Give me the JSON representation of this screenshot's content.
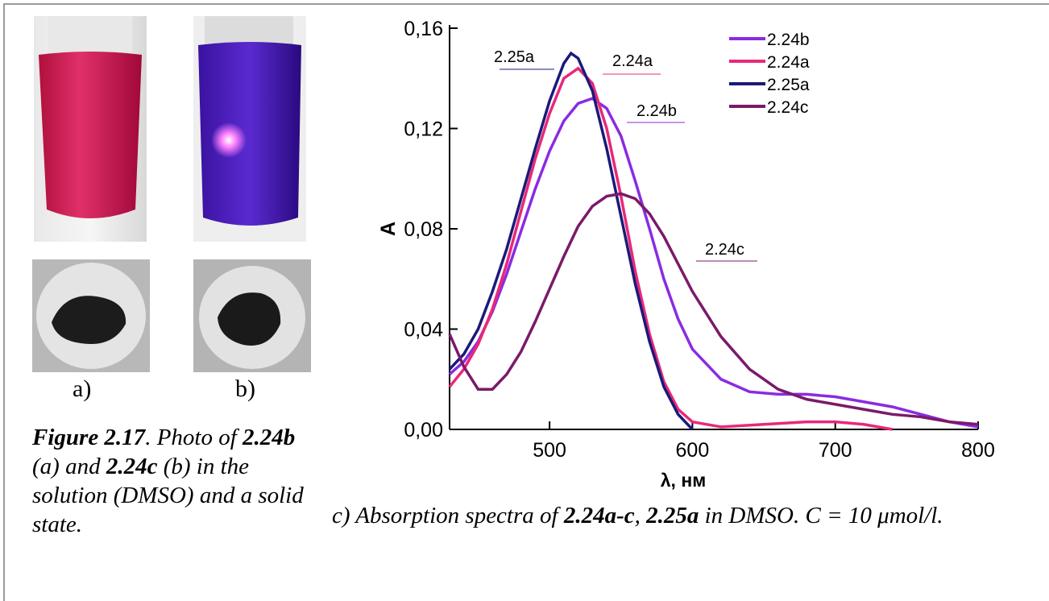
{
  "figure": {
    "photo_labels": [
      "a)",
      "b)"
    ],
    "caption_left": [
      {
        "text": "Figure 2.17",
        "bold": true
      },
      {
        "text": ". Photo of ",
        "bold": false
      },
      {
        "text": "2.24b",
        "bold": true
      },
      {
        "text": " (a) and ",
        "bold": false
      },
      {
        "text": "2.24c",
        "bold": true
      },
      {
        "text": " (b) in the solution (DMSO) and a solid state.",
        "bold": false
      }
    ],
    "caption_right": [
      {
        "text": "c) Absorption spectra of ",
        "bold": false
      },
      {
        "text": "2.24a-c",
        "bold": true
      },
      {
        "text": ", ",
        "bold": false
      },
      {
        "text": "2.25a",
        "bold": true
      },
      {
        "text": " in DMSO. C = 10 μmol/l.",
        "bold": false
      }
    ]
  },
  "chart_data": {
    "type": "line",
    "xlabel": "λ, нм",
    "ylabel": "A",
    "xlim": [
      430,
      800
    ],
    "ylim": [
      0,
      0.16
    ],
    "xticks": [
      500,
      600,
      700,
      800
    ],
    "yticks": [
      {
        "value": 0,
        "label": "0,00"
      },
      {
        "value": 0.04,
        "label": "0,04"
      },
      {
        "value": 0.08,
        "label": "0,08"
      },
      {
        "value": 0.12,
        "label": "0,12"
      },
      {
        "value": 0.16,
        "label": "0,16"
      }
    ],
    "legend": "top-right",
    "annotations": [
      "2.25a",
      "2.24a",
      "2.24b",
      "2.24c"
    ],
    "series": [
      {
        "name": "2.24b",
        "color": "#8a2be2",
        "x": [
          430,
          440,
          450,
          460,
          470,
          480,
          490,
          500,
          510,
          520,
          530,
          540,
          550,
          560,
          570,
          580,
          590,
          600,
          620,
          640,
          660,
          680,
          700,
          720,
          740,
          760,
          780,
          800
        ],
        "values": [
          0.022,
          0.027,
          0.035,
          0.047,
          0.062,
          0.079,
          0.096,
          0.111,
          0.123,
          0.13,
          0.132,
          0.128,
          0.117,
          0.099,
          0.08,
          0.06,
          0.044,
          0.032,
          0.02,
          0.015,
          0.014,
          0.014,
          0.013,
          0.011,
          0.009,
          0.006,
          0.003,
          0.001
        ]
      },
      {
        "name": "2.24a",
        "color": "#e8287a",
        "x": [
          430,
          440,
          450,
          460,
          470,
          480,
          490,
          500,
          510,
          520,
          530,
          540,
          550,
          560,
          570,
          580,
          590,
          600,
          620,
          650,
          680,
          700,
          720,
          740
        ],
        "values": [
          0.017,
          0.024,
          0.034,
          0.048,
          0.066,
          0.087,
          0.108,
          0.126,
          0.14,
          0.144,
          0.138,
          0.12,
          0.093,
          0.063,
          0.038,
          0.019,
          0.008,
          0.003,
          0.001,
          0.002,
          0.003,
          0.003,
          0.002,
          0.0
        ]
      },
      {
        "name": "2.25a",
        "color": "#1a1a7a",
        "x": [
          430,
          440,
          450,
          460,
          470,
          480,
          490,
          500,
          510,
          515,
          520,
          530,
          540,
          550,
          560,
          570,
          580,
          590,
          600
        ],
        "values": [
          0.024,
          0.03,
          0.04,
          0.055,
          0.072,
          0.092,
          0.112,
          0.131,
          0.146,
          0.15,
          0.148,
          0.135,
          0.112,
          0.085,
          0.058,
          0.035,
          0.017,
          0.006,
          0.0
        ]
      },
      {
        "name": "2.24c",
        "color": "#7a1a6a",
        "x": [
          430,
          440,
          450,
          460,
          470,
          480,
          490,
          500,
          510,
          520,
          530,
          540,
          550,
          560,
          570,
          580,
          590,
          600,
          620,
          640,
          660,
          680,
          700,
          720,
          740,
          760,
          780,
          800
        ],
        "values": [
          0.038,
          0.025,
          0.016,
          0.016,
          0.022,
          0.031,
          0.043,
          0.056,
          0.069,
          0.081,
          0.089,
          0.093,
          0.094,
          0.092,
          0.086,
          0.077,
          0.066,
          0.055,
          0.037,
          0.024,
          0.016,
          0.012,
          0.01,
          0.008,
          0.006,
          0.005,
          0.003,
          0.002
        ]
      }
    ]
  }
}
